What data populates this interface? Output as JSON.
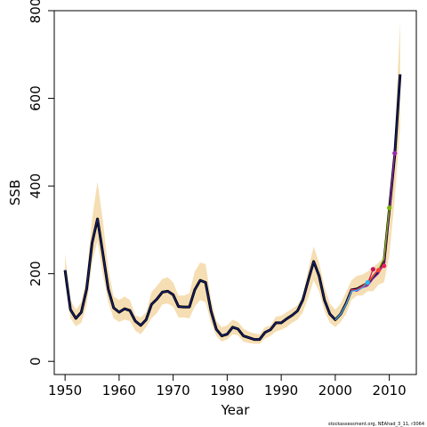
{
  "chart_data": {
    "type": "line",
    "xlabel": "Year",
    "ylabel": "SSB",
    "xlim": [
      1948,
      2015
    ],
    "ylim": [
      -30,
      800
    ],
    "x_ticks": [
      1950,
      1960,
      1970,
      1980,
      1990,
      2000,
      2010
    ],
    "y_ticks": [
      0,
      200,
      400,
      600,
      800
    ],
    "grid": false,
    "legend": "none",
    "footnote": "stockassessment.org, NEAhad_3_11, r3064",
    "band_color": "#f5deb3",
    "x": [
      1950,
      1951,
      1952,
      1953,
      1954,
      1955,
      1956,
      1957,
      1958,
      1959,
      1960,
      1961,
      1962,
      1963,
      1964,
      1965,
      1966,
      1967,
      1968,
      1969,
      1970,
      1971,
      1972,
      1973,
      1974,
      1975,
      1976,
      1977,
      1978,
      1979,
      1980,
      1981,
      1982,
      1983,
      1984,
      1985,
      1986,
      1987,
      1988,
      1989,
      1990,
      1991,
      1992,
      1993,
      1994,
      1995,
      1996,
      1997,
      1998,
      1999,
      2000,
      2001,
      2002,
      2003,
      2004,
      2005,
      2006,
      2007,
      2008,
      2009,
      2010,
      2011,
      2012
    ],
    "ci_lower": [
      180,
      98,
      80,
      88,
      128,
      225,
      275,
      198,
      135,
      98,
      90,
      95,
      92,
      70,
      62,
      78,
      98,
      110,
      130,
      132,
      125,
      100,
      100,
      98,
      125,
      140,
      135,
      88,
      58,
      45,
      50,
      62,
      60,
      45,
      42,
      40,
      40,
      52,
      58,
      68,
      72,
      78,
      88,
      95,
      112,
      145,
      185,
      160,
      115,
      88,
      78,
      90,
      108,
      140,
      150,
      150,
      160,
      160,
      175,
      180,
      240,
      370,
      535
    ],
    "ci_upper": [
      245,
      140,
      118,
      135,
      190,
      325,
      410,
      320,
      210,
      148,
      140,
      148,
      140,
      105,
      100,
      112,
      158,
      172,
      188,
      192,
      180,
      150,
      150,
      155,
      205,
      225,
      222,
      142,
      92,
      78,
      82,
      95,
      90,
      75,
      68,
      64,
      62,
      78,
      82,
      102,
      104,
      112,
      120,
      128,
      150,
      210,
      262,
      225,
      170,
      132,
      118,
      132,
      158,
      185,
      195,
      198,
      205,
      215,
      225,
      238,
      300,
      500,
      775
    ]
  },
  "series": [
    {
      "name": "",
      "color": "#1a237e",
      "values": [
        208,
        118,
        98,
        112,
        165,
        270,
        325,
        245,
        165,
        122,
        112,
        120,
        116,
        92,
        82,
        95,
        130,
        142,
        158,
        160,
        152,
        125,
        124,
        124,
        163,
        185,
        180,
        115,
        73,
        58,
        62,
        78,
        74,
        58,
        54,
        50,
        50,
        66,
        72,
        88,
        88,
        97,
        105,
        115,
        140,
        185,
        228,
        195,
        140,
        108,
        95,
        108,
        132,
        163,
        165,
        172,
        178,
        192,
        205,
        225,
        345,
        470,
        655
      ]
    }
  ],
  "retros": [
    {
      "color": "#9c27b0",
      "x": [
        2000,
        2001,
        2002,
        2003,
        2004,
        2005,
        2006,
        2007,
        2008,
        2009,
        2010,
        2011
      ],
      "values": [
        95,
        108,
        130,
        162,
        160,
        168,
        172,
        188,
        200,
        222,
        340,
        475
      ],
      "end_marker": true
    },
    {
      "color": "#7cb800",
      "x": [
        2000,
        2001,
        2002,
        2003,
        2004,
        2005,
        2006,
        2007,
        2008,
        2009,
        2010
      ],
      "values": [
        95,
        108,
        130,
        163,
        162,
        170,
        178,
        194,
        210,
        235,
        350
      ],
      "end_marker": true
    },
    {
      "color": "#e91e63",
      "x": [
        2000,
        2001,
        2002,
        2003,
        2004,
        2005,
        2006,
        2007,
        2008,
        2009
      ],
      "values": [
        95,
        108,
        130,
        164,
        163,
        172,
        180,
        196,
        210,
        218
      ],
      "end_marker": true
    },
    {
      "color": "#f44336",
      "x": [
        2000,
        2001,
        2002,
        2003,
        2004,
        2005,
        2006,
        2007,
        2008
      ],
      "values": [
        95,
        108,
        130,
        162,
        164,
        172,
        180,
        196,
        208
      ],
      "end_marker": true
    },
    {
      "color": "#c2185b",
      "x": [
        2000,
        2001,
        2002,
        2003,
        2004,
        2005,
        2006,
        2007
      ],
      "values": [
        95,
        108,
        130,
        162,
        163,
        170,
        178,
        210
      ],
      "end_marker": true
    },
    {
      "color": "#29b6f6",
      "x": [
        2000,
        2001,
        2002,
        2003,
        2004,
        2005,
        2006
      ],
      "values": [
        95,
        108,
        130,
        160,
        162,
        168,
        180
      ],
      "end_marker": true
    }
  ]
}
